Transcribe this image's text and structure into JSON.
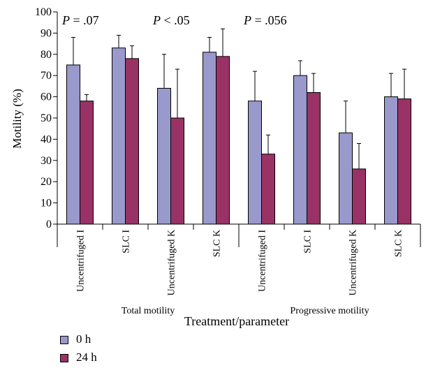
{
  "chart_data": {
    "type": "bar",
    "ylabel": "Motility (%)",
    "xlabel": "Treatment/parameter",
    "ylim": [
      0,
      100
    ],
    "yticks": [
      0,
      10,
      20,
      30,
      40,
      50,
      60,
      70,
      80,
      90,
      100
    ],
    "categories": [
      "Uncentrifuged I",
      "SLC I",
      "Uncentrifuged K",
      "SLC K",
      "Uncentrifuged I",
      "SLC I",
      "Uncentrifuged K",
      "SLC K"
    ],
    "groups": [
      "Total motility",
      "Progressive motility"
    ],
    "series": [
      {
        "name": "0 h",
        "color": "#9999cc",
        "values": [
          75,
          83,
          64,
          81,
          58,
          70,
          43,
          60
        ],
        "err_upper": [
          88,
          89,
          80,
          88,
          72,
          77,
          58,
          71
        ]
      },
      {
        "name": "24 h",
        "color": "#993366",
        "values": [
          58,
          78,
          50,
          79,
          33,
          62,
          26,
          59
        ],
        "err_upper": [
          61,
          84,
          73,
          92,
          42,
          71,
          38,
          73
        ]
      }
    ],
    "annotations": [
      {
        "prefix": "P",
        "text": " = .07",
        "category_index": 0,
        "y": 96
      },
      {
        "prefix": "P",
        "text": " < .05",
        "category_index": 2,
        "y": 96
      },
      {
        "prefix": "P",
        "text": " = .056",
        "category_index": 4,
        "y": 96
      }
    ],
    "grid": false,
    "legend_position": "bottom-left"
  }
}
